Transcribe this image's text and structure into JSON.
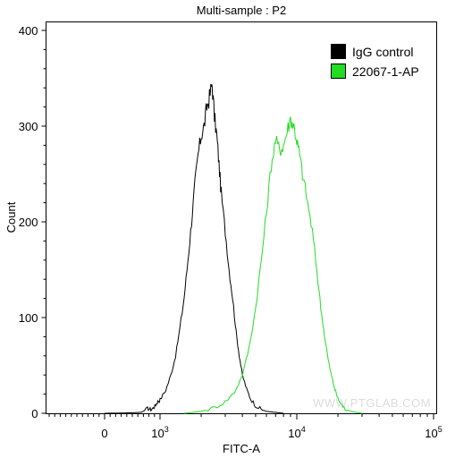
{
  "chart_data": {
    "type": "line",
    "title": "Multi-sample : P2",
    "xlabel": "FITC-A",
    "ylabel": "Count",
    "x_scale": "biexponential",
    "x_ticks": [
      {
        "value": 0,
        "base": "0",
        "exp": ""
      },
      {
        "value": 1000,
        "base": "10",
        "exp": "3"
      },
      {
        "value": 10000,
        "base": "10",
        "exp": "4"
      },
      {
        "value": 100000,
        "base": "10",
        "exp": "5"
      }
    ],
    "ylim": [
      0,
      400
    ],
    "y_ticks": [
      "0",
      "100",
      "200",
      "300",
      "400"
    ],
    "grid": false,
    "legend_position": "top-right",
    "watermark": "WWW.PTGLAB.COM",
    "series": [
      {
        "name": "IgG control",
        "color": "#000000",
        "points": [
          [
            0,
            0
          ],
          [
            400,
            1
          ],
          [
            550,
            5
          ],
          [
            650,
            4
          ],
          [
            750,
            6
          ],
          [
            820,
            9
          ],
          [
            900,
            12
          ],
          [
            1000,
            14
          ],
          [
            1100,
            24
          ],
          [
            1200,
            40
          ],
          [
            1300,
            60
          ],
          [
            1400,
            90
          ],
          [
            1500,
            120
          ],
          [
            1600,
            160
          ],
          [
            1700,
            200
          ],
          [
            1800,
            240
          ],
          [
            1900,
            270
          ],
          [
            2000,
            290
          ],
          [
            2100,
            300
          ],
          [
            2200,
            320
          ],
          [
            2300,
            330
          ],
          [
            2400,
            345
          ],
          [
            2500,
            310
          ],
          [
            2600,
            290
          ],
          [
            2700,
            260
          ],
          [
            2800,
            230
          ],
          [
            3000,
            190
          ],
          [
            3200,
            150
          ],
          [
            3400,
            120
          ],
          [
            3600,
            85
          ],
          [
            3800,
            60
          ],
          [
            4000,
            40
          ],
          [
            4300,
            25
          ],
          [
            4600,
            15
          ],
          [
            5000,
            8
          ],
          [
            5500,
            4
          ],
          [
            6000,
            2
          ],
          [
            7000,
            1
          ],
          [
            8000,
            0
          ]
        ]
      },
      {
        "name": "22067-1-AP",
        "color": "#22dd22",
        "points": [
          [
            1500,
            0
          ],
          [
            2000,
            2
          ],
          [
            2500,
            6
          ],
          [
            3000,
            12
          ],
          [
            3500,
            22
          ],
          [
            4000,
            40
          ],
          [
            4500,
            70
          ],
          [
            5000,
            110
          ],
          [
            5500,
            160
          ],
          [
            6000,
            210
          ],
          [
            6500,
            260
          ],
          [
            7000,
            285
          ],
          [
            7500,
            275
          ],
          [
            8000,
            280
          ],
          [
            8500,
            295
          ],
          [
            9000,
            308
          ],
          [
            9500,
            300
          ],
          [
            10000,
            285
          ],
          [
            10500,
            270
          ],
          [
            11000,
            250
          ],
          [
            12000,
            220
          ],
          [
            13000,
            190
          ],
          [
            14000,
            150
          ],
          [
            15000,
            110
          ],
          [
            16000,
            80
          ],
          [
            17000,
            55
          ],
          [
            18000,
            38
          ],
          [
            19000,
            25
          ],
          [
            20000,
            15
          ],
          [
            21000,
            10
          ],
          [
            22000,
            6
          ],
          [
            23000,
            4
          ],
          [
            25000,
            2
          ],
          [
            27000,
            1
          ],
          [
            30000,
            0
          ]
        ]
      }
    ]
  }
}
